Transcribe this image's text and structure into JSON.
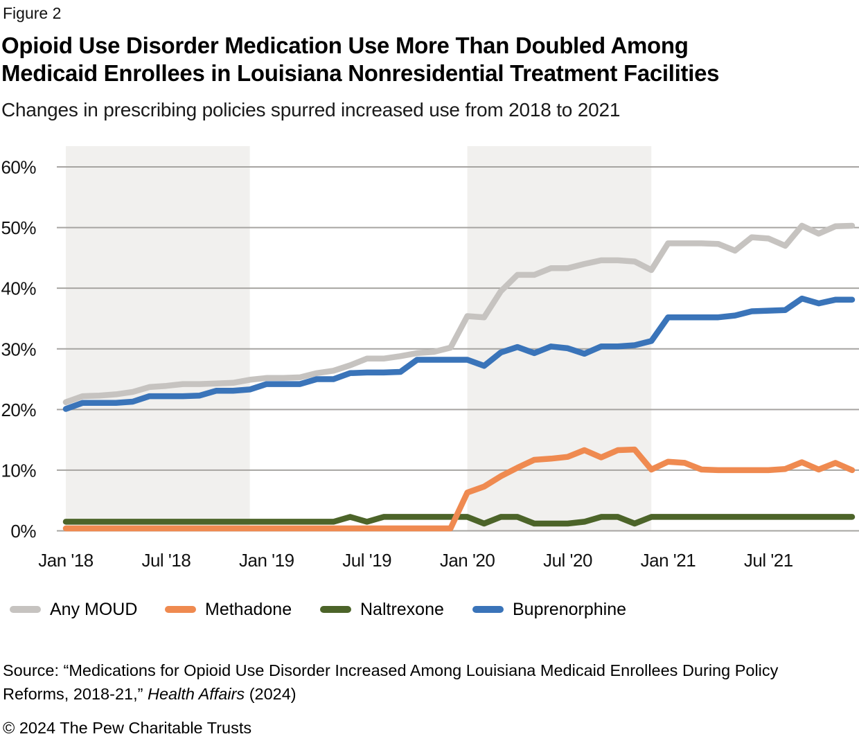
{
  "figure_label": "Figure 2",
  "title": {
    "line1": "Opioid Use Disorder Medication Use More Than Doubled Among",
    "line2": "Medicaid Enrollees in Louisiana Nonresidential Treatment Facilities"
  },
  "subtitle": "Changes in prescribing policies spurred increased use from 2018 to 2021",
  "colors": {
    "any_moud": "#c6c3c0",
    "methadone": "#ef8a50",
    "naltrexone": "#4c6429",
    "buprenorphine": "#3a74b9",
    "highlight_band": "#f1f0ee",
    "gridline": "#a6a4a1",
    "text": "#111111"
  },
  "chart_data": {
    "type": "line",
    "x_range": {
      "start": "Jan 2018",
      "end": "Dec 2021",
      "interval": "monthly",
      "points": 48
    },
    "ylim": [
      0,
      60
    ],
    "grid": "horizontal",
    "legend_position": "bottom",
    "band_color": "#f1f0ee",
    "highlight_bands": [
      {
        "start_index": 0,
        "end_index": 11
      },
      {
        "start_index": 24,
        "end_index": 35
      }
    ],
    "y_ticks": [
      {
        "value": 0,
        "label": "0%"
      },
      {
        "value": 10,
        "label": "10%"
      },
      {
        "value": 20,
        "label": "20%"
      },
      {
        "value": 30,
        "label": "30%"
      },
      {
        "value": 40,
        "label": "40%"
      },
      {
        "value": 50,
        "label": "50%"
      },
      {
        "value": 60,
        "label": "60%"
      }
    ],
    "x_ticks": [
      {
        "index": 0,
        "label": "Jan '18"
      },
      {
        "index": 6,
        "label": "Jul '18"
      },
      {
        "index": 12,
        "label": "Jan '19"
      },
      {
        "index": 18,
        "label": "Jul '19"
      },
      {
        "index": 24,
        "label": "Jan '20"
      },
      {
        "index": 30,
        "label": "Jul '20"
      },
      {
        "index": 36,
        "label": "Jan '21"
      },
      {
        "index": 42,
        "label": "Jul '21"
      }
    ],
    "series": [
      {
        "name": "Any MOUD",
        "color": "#c6c3c0",
        "values": [
          21.2,
          22.2,
          22.3,
          22.5,
          22.9,
          23.7,
          23.9,
          24.2,
          24.2,
          24.3,
          24.4,
          24.9,
          25.2,
          25.2,
          25.3,
          26.0,
          26.4,
          27.3,
          28.4,
          28.4,
          28.8,
          29.3,
          29.5,
          30.2,
          35.4,
          35.2,
          39.5,
          42.2,
          42.2,
          43.3,
          43.3,
          44.0,
          44.6,
          44.6,
          44.4,
          43.0,
          47.4,
          47.4,
          47.4,
          47.3,
          46.2,
          48.4,
          48.2,
          47.0,
          50.3,
          49.0,
          50.2,
          50.3
        ]
      },
      {
        "name": "Naltrexone",
        "color": "#4c6429",
        "values": [
          1.5,
          1.5,
          1.5,
          1.5,
          1.5,
          1.5,
          1.5,
          1.5,
          1.5,
          1.5,
          1.5,
          1.5,
          1.5,
          1.5,
          1.5,
          1.5,
          1.5,
          2.3,
          1.5,
          2.3,
          2.3,
          2.3,
          2.3,
          2.3,
          2.3,
          1.2,
          2.3,
          2.3,
          1.2,
          1.2,
          1.2,
          1.5,
          2.3,
          2.3,
          1.2,
          2.3,
          2.3,
          2.3,
          2.3,
          2.3,
          2.3,
          2.3,
          2.3,
          2.3,
          2.3,
          2.3,
          2.3,
          2.3
        ]
      },
      {
        "name": "Methadone",
        "color": "#ef8a50",
        "values": [
          0.4,
          0.4,
          0.4,
          0.4,
          0.4,
          0.4,
          0.4,
          0.4,
          0.4,
          0.4,
          0.4,
          0.4,
          0.4,
          0.4,
          0.4,
          0.4,
          0.4,
          0.4,
          0.4,
          0.4,
          0.4,
          0.4,
          0.4,
          0.4,
          6.3,
          7.3,
          9.0,
          10.4,
          11.7,
          11.9,
          12.2,
          13.3,
          12.1,
          13.3,
          13.4,
          10.1,
          11.4,
          11.2,
          10.1,
          10.0,
          10.0,
          10.0,
          10.0,
          10.2,
          11.3,
          10.1,
          11.2,
          10.0
        ]
      },
      {
        "name": "Buprenorphine",
        "color": "#3a74b9",
        "values": [
          20.1,
          21.1,
          21.1,
          21.1,
          21.3,
          22.2,
          22.2,
          22.2,
          22.3,
          23.1,
          23.1,
          23.3,
          24.2,
          24.2,
          24.2,
          25.0,
          25.0,
          26.0,
          26.1,
          26.1,
          26.2,
          28.2,
          28.2,
          28.2,
          28.2,
          27.2,
          29.4,
          30.3,
          29.3,
          30.4,
          30.1,
          29.2,
          30.4,
          30.4,
          30.6,
          31.3,
          35.2,
          35.2,
          35.2,
          35.2,
          35.5,
          36.2,
          36.3,
          36.4,
          38.3,
          37.5,
          38.1,
          38.1
        ]
      }
    ]
  },
  "legend": {
    "items": [
      {
        "label": "Any MOUD",
        "color": "#c6c3c0"
      },
      {
        "label": "Methadone",
        "color": "#ef8a50"
      },
      {
        "label": "Naltrexone",
        "color": "#4c6429"
      },
      {
        "label": "Buprenorphine",
        "color": "#3a74b9"
      }
    ]
  },
  "source": {
    "line1": "Source: “Medications for Opioid Use Disorder Increased Among Louisiana Medicaid Enrollees During Policy",
    "line2_pre": "Reforms, 2018-21,” ",
    "line2_italic": "Health Affairs",
    "line2_post": " (2024)"
  },
  "copyright": "© 2024 The Pew Charitable Trusts"
}
